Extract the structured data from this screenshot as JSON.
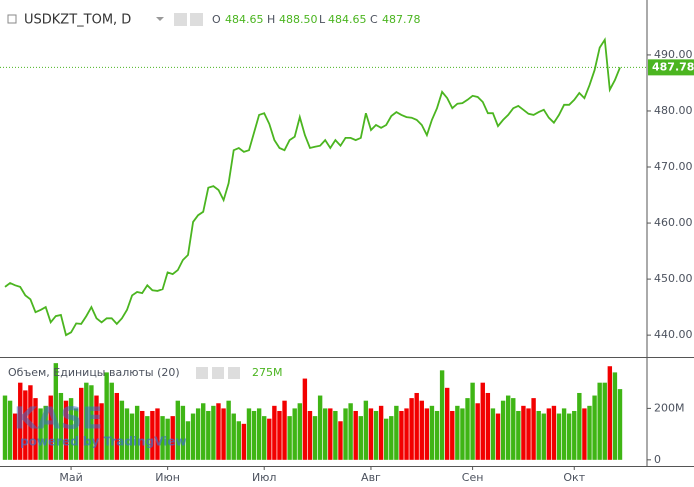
{
  "chart_data": {
    "type": "line",
    "title": "USDKZT_TOM, D",
    "ohlc": {
      "O": 484.65,
      "H": 488.5,
      "L": 484.65,
      "C": 487.78
    },
    "ohlc_labels": {
      "O": "484.65",
      "H": "488.50",
      "L": "484.65",
      "C": "487.78"
    },
    "color": "#4bb520",
    "categories": [
      null,
      null,
      null,
      null,
      null,
      null,
      null,
      null,
      null,
      null,
      null,
      null,
      null,
      "Май",
      null,
      null,
      null,
      null,
      null,
      null,
      null,
      null,
      null,
      null,
      null,
      null,
      null,
      null,
      null,
      null,
      null,
      null,
      "Июн",
      null,
      null,
      null,
      null,
      null,
      null,
      null,
      null,
      null,
      null,
      null,
      null,
      null,
      null,
      null,
      null,
      null,
      null,
      "Июл",
      null,
      null,
      null,
      null,
      null,
      null,
      null,
      null,
      null,
      null,
      null,
      null,
      null,
      null,
      null,
      null,
      null,
      null,
      null,
      null,
      "Авг",
      null,
      null,
      null,
      null,
      null,
      null,
      null,
      null,
      null,
      null,
      null,
      null,
      null,
      null,
      null,
      null,
      null,
      null,
      null,
      "Сен",
      null,
      null,
      null,
      null,
      null,
      null,
      null,
      null,
      null,
      null,
      null,
      null,
      null,
      null,
      null,
      null,
      null,
      null,
      null,
      "Окт",
      null,
      null,
      null,
      null,
      null,
      null,
      null,
      null,
      null
    ],
    "values": [
      448.6,
      449.3,
      448.9,
      448.6,
      447.1,
      446.4,
      444.1,
      444.5,
      445.0,
      442.3,
      443.4,
      443.6,
      440.0,
      440.5,
      442.1,
      442.0,
      443.4,
      445.0,
      443.0,
      442.3,
      443.0,
      443.0,
      442.0,
      443.0,
      444.5,
      447.1,
      447.7,
      447.5,
      448.9,
      448.0,
      447.9,
      448.2,
      451.2,
      450.9,
      451.6,
      453.4,
      454.3,
      460.2,
      461.4,
      462.0,
      466.3,
      466.6,
      465.9,
      464.1,
      467.1,
      473.0,
      473.4,
      472.7,
      473.0,
      476.1,
      479.3,
      479.6,
      477.7,
      474.8,
      473.4,
      473.0,
      474.8,
      475.4,
      478.9,
      475.7,
      473.4,
      473.6,
      473.8,
      474.8,
      473.4,
      474.8,
      473.8,
      475.2,
      475.2,
      474.8,
      475.2,
      479.6,
      476.6,
      477.5,
      477.0,
      477.5,
      479.1,
      479.8,
      479.3,
      478.9,
      478.8,
      478.4,
      477.5,
      475.7,
      478.4,
      480.5,
      483.4,
      482.3,
      480.5,
      481.3,
      481.4,
      482.0,
      482.7,
      482.5,
      481.6,
      479.6,
      479.6,
      477.3,
      478.4,
      479.3,
      480.5,
      480.9,
      480.2,
      479.5,
      479.3,
      479.8,
      480.2,
      478.8,
      477.9,
      479.3,
      481.1,
      481.1,
      482.0,
      483.2,
      482.3,
      484.6,
      487.3,
      491.3,
      492.7,
      483.8,
      485.5,
      487.78
    ],
    "ylim": [
      436.1,
      499.8
    ],
    "yticks": [
      {
        "value": 440,
        "label": "440.00"
      },
      {
        "value": 450,
        "label": "450.00"
      },
      {
        "value": 460,
        "label": "460.00"
      },
      {
        "value": 470,
        "label": "470.00"
      },
      {
        "value": 480,
        "label": "480.00"
      },
      {
        "value": 490,
        "label": "490.00"
      }
    ],
    "last_label": "487.78",
    "volume": {
      "title": "Объем, Единицы валюты (20)",
      "last_label": "275M",
      "up_color": "#3fb515",
      "down_color": "#f20000",
      "values": [
        250,
        230,
        180,
        300,
        270,
        290,
        240,
        200,
        210,
        250,
        376,
        260,
        230,
        240,
        200,
        280,
        300,
        290,
        250,
        220,
        340,
        300,
        260,
        230,
        200,
        180,
        210,
        190,
        170,
        190,
        200,
        170,
        160,
        170,
        230,
        210,
        150,
        180,
        200,
        220,
        190,
        210,
        220,
        200,
        230,
        180,
        150,
        140,
        200,
        190,
        200,
        170,
        160,
        210,
        190,
        230,
        170,
        200,
        220,
        316,
        190,
        170,
        250,
        200,
        200,
        190,
        150,
        200,
        220,
        190,
        170,
        230,
        200,
        190,
        210,
        160,
        170,
        210,
        190,
        200,
        240,
        260,
        230,
        200,
        210,
        190,
        348,
        280,
        190,
        210,
        200,
        240,
        300,
        220,
        300,
        260,
        200,
        180,
        230,
        250,
        240,
        190,
        210,
        200,
        240,
        190,
        180,
        200,
        210,
        180,
        200,
        180,
        190,
        260,
        200,
        210,
        250,
        300,
        300,
        364,
        340,
        275
      ],
      "ylim": [
        -24,
        396
      ],
      "yticks": [
        0,
        {
          "value": 200,
          "label": "200M"
        }
      ]
    },
    "watermark": "KASE",
    "watermark_sub": "powered by TradingView"
  }
}
